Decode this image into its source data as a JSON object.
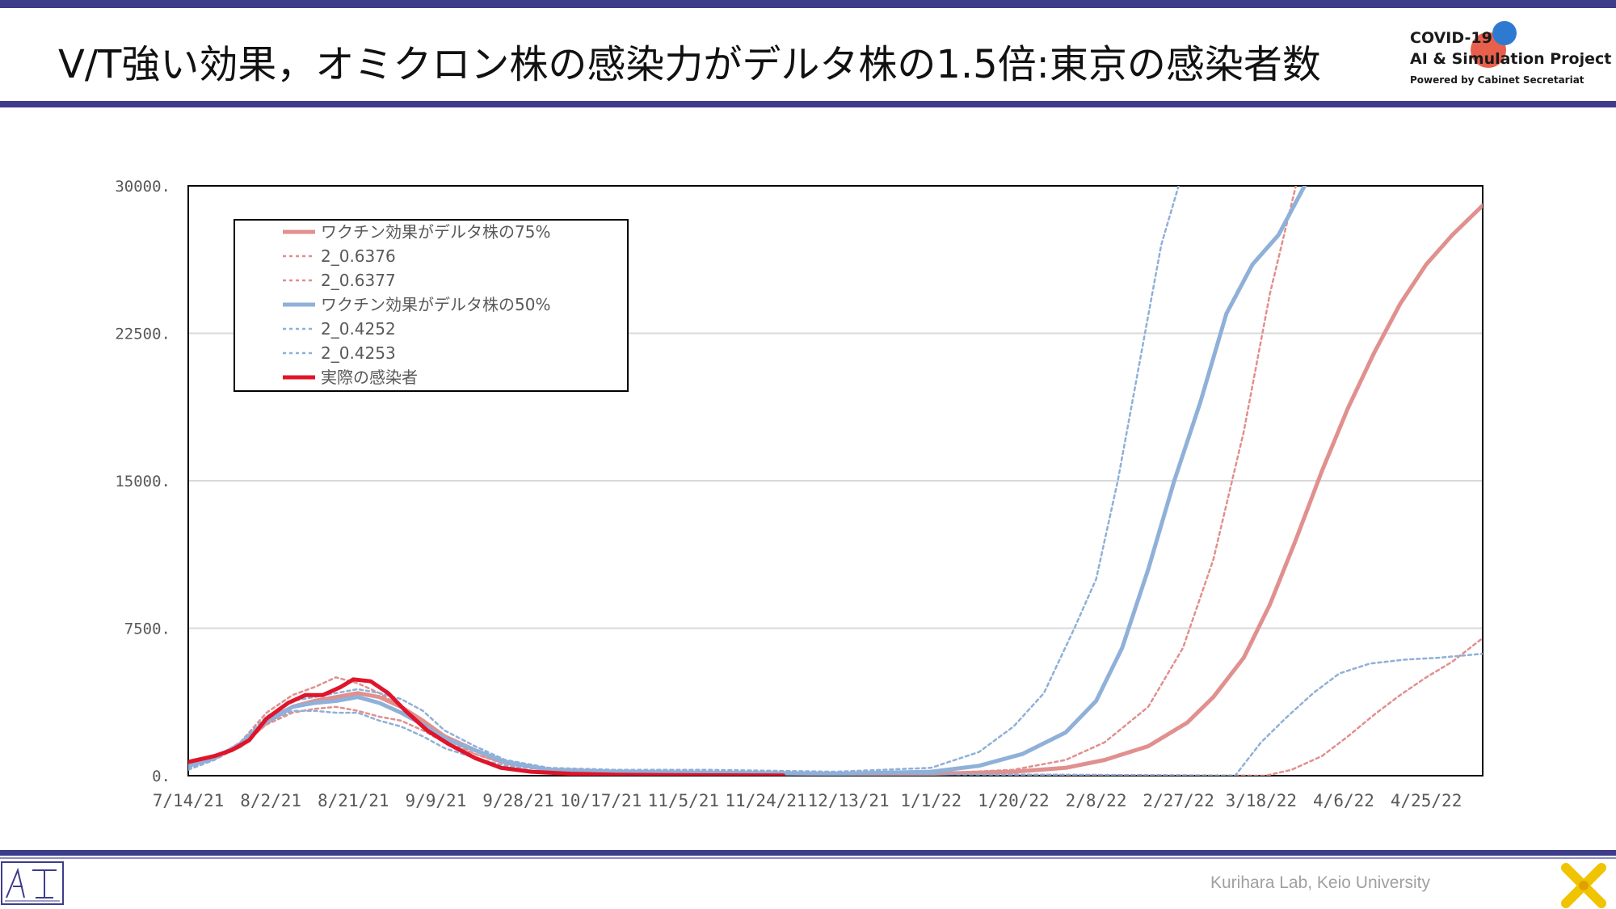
{
  "header": {
    "title": "V/T強い効果，オミクロン株の感染力がデルタ株の1.5倍:東京の感染者数"
  },
  "logo": {
    "line1": "COVID-19",
    "line2": "AI & Simulation Project",
    "line3": "Powered by Cabinet Secretariat"
  },
  "footer": {
    "credit": "Kurihara Lab, Keio University"
  },
  "colors": {
    "accent": "#3d3d8a",
    "pink": "#e0908e",
    "blue": "#8fb0d8",
    "red": "#e0142a"
  },
  "chart_data": {
    "type": "line",
    "x_axis_type": "date",
    "x_start": "2021-07-14",
    "x_end": "2022-05-08",
    "x_tick_labels": [
      "7/14/21",
      "8/2/21",
      "8/21/21",
      "9/9/21",
      "9/28/21",
      "10/17/21",
      "11/5/21",
      "11/24/21",
      "12/13/21",
      "1/1/22",
      "1/20/22",
      "2/8/22",
      "2/27/22",
      "3/18/22",
      "4/6/22",
      "4/25/22"
    ],
    "y_tick_labels": [
      "0.",
      "7500.",
      "15000.",
      "22500.",
      "30000."
    ],
    "ylim": [
      0,
      30000
    ],
    "grid": true,
    "legend_position": "top-left",
    "series": [
      {
        "name": "ワクチン効果がデルタ株の75%",
        "style": "solid",
        "color": "#e0908e",
        "points": [
          [
            "2021-07-14",
            600
          ],
          [
            "2021-07-20",
            950
          ],
          [
            "2021-07-26",
            1500
          ],
          [
            "2021-08-01",
            2700
          ],
          [
            "2021-08-07",
            3500
          ],
          [
            "2021-08-12",
            3800
          ],
          [
            "2021-08-17",
            4000
          ],
          [
            "2021-08-22",
            4200
          ],
          [
            "2021-08-27",
            4000
          ],
          [
            "2021-09-01",
            3500
          ],
          [
            "2021-09-06",
            2800
          ],
          [
            "2021-09-11",
            2000
          ],
          [
            "2021-09-18",
            1300
          ],
          [
            "2021-09-25",
            700
          ],
          [
            "2021-10-05",
            300
          ],
          [
            "2021-10-20",
            200
          ],
          [
            "2021-11-10",
            150
          ],
          [
            "2021-12-10",
            100
          ],
          [
            "2022-01-01",
            100
          ],
          [
            "2022-01-20",
            200
          ],
          [
            "2022-02-01",
            400
          ],
          [
            "2022-02-10",
            800
          ],
          [
            "2022-02-20",
            1500
          ],
          [
            "2022-03-01",
            2700
          ],
          [
            "2022-03-07",
            4000
          ],
          [
            "2022-03-14",
            6000
          ],
          [
            "2022-03-20",
            8700
          ],
          [
            "2022-03-26",
            12000
          ],
          [
            "2022-04-01",
            15500
          ],
          [
            "2022-04-07",
            18700
          ],
          [
            "2022-04-13",
            21500
          ],
          [
            "2022-04-19",
            24000
          ],
          [
            "2022-04-25",
            26000
          ],
          [
            "2022-05-01",
            27500
          ],
          [
            "2022-05-08",
            29000
          ]
        ]
      },
      {
        "name": "2_0.6376",
        "style": "dotted",
        "color": "#e0908e",
        "points": [
          [
            "2021-07-14",
            500
          ],
          [
            "2021-07-20",
            900
          ],
          [
            "2021-07-26",
            1700
          ],
          [
            "2021-08-01",
            3200
          ],
          [
            "2021-08-07",
            4100
          ],
          [
            "2021-08-12",
            4500
          ],
          [
            "2021-08-17",
            5000
          ],
          [
            "2021-08-22",
            4700
          ],
          [
            "2021-08-27",
            4200
          ],
          [
            "2021-09-01",
            3500
          ],
          [
            "2021-09-06",
            2700
          ],
          [
            "2021-09-11",
            1900
          ],
          [
            "2021-09-18",
            1100
          ],
          [
            "2021-09-25",
            600
          ],
          [
            "2021-10-05",
            300
          ],
          [
            "2021-10-20",
            200
          ],
          [
            "2021-11-10",
            150
          ],
          [
            "2021-12-10",
            100
          ],
          [
            "2022-01-01",
            100
          ],
          [
            "2022-01-20",
            300
          ],
          [
            "2022-02-01",
            800
          ],
          [
            "2022-02-10",
            1700
          ],
          [
            "2022-02-20",
            3500
          ],
          [
            "2022-02-28",
            6500
          ],
          [
            "2022-03-07",
            11000
          ],
          [
            "2022-03-14",
            17500
          ],
          [
            "2022-03-20",
            24500
          ],
          [
            "2022-03-26",
            30000
          ]
        ]
      },
      {
        "name": "2_0.6377",
        "style": "dotted",
        "color": "#e0908e",
        "points": [
          [
            "2021-07-14",
            400
          ],
          [
            "2021-07-20",
            800
          ],
          [
            "2021-07-26",
            1500
          ],
          [
            "2021-08-01",
            2600
          ],
          [
            "2021-08-07",
            3200
          ],
          [
            "2021-08-12",
            3400
          ],
          [
            "2021-08-17",
            3500
          ],
          [
            "2021-08-22",
            3300
          ],
          [
            "2021-08-27",
            3000
          ],
          [
            "2021-09-01",
            2800
          ],
          [
            "2021-09-06",
            2300
          ],
          [
            "2021-09-11",
            1700
          ],
          [
            "2021-09-18",
            1100
          ],
          [
            "2021-09-25",
            600
          ],
          [
            "2021-10-05",
            300
          ],
          [
            "2021-10-20",
            200
          ],
          [
            "2021-11-10",
            150
          ],
          [
            "2021-12-10",
            100
          ],
          [
            "2022-03-19",
            0
          ],
          [
            "2022-03-25",
            300
          ],
          [
            "2022-04-01",
            1000
          ],
          [
            "2022-04-07",
            2000
          ],
          [
            "2022-04-13",
            3100
          ],
          [
            "2022-04-19",
            4100
          ],
          [
            "2022-04-25",
            5000
          ],
          [
            "2022-05-01",
            5800
          ],
          [
            "2022-05-08",
            7000
          ]
        ]
      },
      {
        "name": "ワクチン効果がデルタ株の50%",
        "style": "solid",
        "color": "#8fb0d8",
        "points": [
          [
            "2021-07-14",
            500
          ],
          [
            "2021-07-20",
            900
          ],
          [
            "2021-07-26",
            1600
          ],
          [
            "2021-08-01",
            2800
          ],
          [
            "2021-08-07",
            3500
          ],
          [
            "2021-08-12",
            3700
          ],
          [
            "2021-08-17",
            3800
          ],
          [
            "2021-08-22",
            4000
          ],
          [
            "2021-08-27",
            3700
          ],
          [
            "2021-09-01",
            3200
          ],
          [
            "2021-09-06",
            2600
          ],
          [
            "2021-09-11",
            1900
          ],
          [
            "2021-09-18",
            1300
          ],
          [
            "2021-09-25",
            700
          ],
          [
            "2021-10-05",
            300
          ],
          [
            "2021-10-20",
            200
          ],
          [
            "2021-11-10",
            150
          ],
          [
            "2021-12-10",
            100
          ],
          [
            "2022-01-01",
            200
          ],
          [
            "2022-01-12",
            500
          ],
          [
            "2022-01-22",
            1100
          ],
          [
            "2022-02-01",
            2200
          ],
          [
            "2022-02-08",
            3800
          ],
          [
            "2022-02-14",
            6500
          ],
          [
            "2022-02-20",
            10500
          ],
          [
            "2022-02-26",
            15000
          ],
          [
            "2022-03-04",
            19000
          ],
          [
            "2022-03-10",
            23500
          ],
          [
            "2022-03-16",
            26000
          ],
          [
            "2022-03-22",
            27500
          ],
          [
            "2022-03-28",
            30000
          ]
        ]
      },
      {
        "name": "2_0.4252",
        "style": "dotted",
        "color": "#8fb0d8",
        "points": [
          [
            "2021-07-14",
            400
          ],
          [
            "2021-07-20",
            800
          ],
          [
            "2021-07-26",
            1700
          ],
          [
            "2021-08-01",
            3000
          ],
          [
            "2021-08-07",
            3800
          ],
          [
            "2021-08-12",
            4000
          ],
          [
            "2021-08-17",
            4200
          ],
          [
            "2021-08-22",
            4400
          ],
          [
            "2021-08-27",
            4200
          ],
          [
            "2021-09-01",
            3900
          ],
          [
            "2021-09-06",
            3300
          ],
          [
            "2021-09-11",
            2300
          ],
          [
            "2021-09-18",
            1500
          ],
          [
            "2021-09-25",
            800
          ],
          [
            "2021-10-05",
            400
          ],
          [
            "2021-10-20",
            300
          ],
          [
            "2021-11-10",
            300
          ],
          [
            "2021-12-10",
            200
          ],
          [
            "2022-01-01",
            400
          ],
          [
            "2022-01-12",
            1200
          ],
          [
            "2022-01-20",
            2500
          ],
          [
            "2022-01-27",
            4200
          ],
          [
            "2022-02-03",
            7500
          ],
          [
            "2022-02-08",
            10000
          ],
          [
            "2022-02-13",
            15000
          ],
          [
            "2022-02-18",
            21000
          ],
          [
            "2022-02-23",
            27000
          ],
          [
            "2022-02-27",
            30000
          ]
        ]
      },
      {
        "name": "2_0.4253",
        "style": "dotted",
        "color": "#8fb0d8",
        "points": [
          [
            "2021-07-14",
            300
          ],
          [
            "2021-07-20",
            800
          ],
          [
            "2021-07-26",
            1600
          ],
          [
            "2021-08-01",
            2700
          ],
          [
            "2021-08-07",
            3300
          ],
          [
            "2021-08-12",
            3300
          ],
          [
            "2021-08-17",
            3200
          ],
          [
            "2021-08-22",
            3200
          ],
          [
            "2021-08-27",
            2800
          ],
          [
            "2021-09-01",
            2500
          ],
          [
            "2021-09-06",
            2000
          ],
          [
            "2021-09-11",
            1400
          ],
          [
            "2021-09-18",
            900
          ],
          [
            "2021-09-25",
            500
          ],
          [
            "2021-10-05",
            300
          ],
          [
            "2021-10-20",
            200
          ],
          [
            "2021-11-10",
            150
          ],
          [
            "2021-12-10",
            100
          ],
          [
            "2022-03-12",
            0
          ],
          [
            "2022-03-18",
            1700
          ],
          [
            "2022-03-24",
            3000
          ],
          [
            "2022-03-30",
            4200
          ],
          [
            "2022-04-05",
            5200
          ],
          [
            "2022-04-12",
            5700
          ],
          [
            "2022-04-20",
            5900
          ],
          [
            "2022-04-28",
            6000
          ],
          [
            "2022-05-08",
            6200
          ]
        ]
      },
      {
        "name": "実際の感染者",
        "style": "solid",
        "color": "#e0142a",
        "points": [
          [
            "2021-07-14",
            700
          ],
          [
            "2021-07-20",
            1000
          ],
          [
            "2021-07-24",
            1300
          ],
          [
            "2021-07-28",
            1800
          ],
          [
            "2021-08-01",
            2900
          ],
          [
            "2021-08-06",
            3700
          ],
          [
            "2021-08-10",
            4100
          ],
          [
            "2021-08-14",
            4100
          ],
          [
            "2021-08-18",
            4500
          ],
          [
            "2021-08-21",
            4900
          ],
          [
            "2021-08-25",
            4800
          ],
          [
            "2021-08-29",
            4200
          ],
          [
            "2021-09-02",
            3300
          ],
          [
            "2021-09-07",
            2300
          ],
          [
            "2021-09-12",
            1600
          ],
          [
            "2021-09-18",
            900
          ],
          [
            "2021-09-24",
            400
          ],
          [
            "2021-10-01",
            200
          ],
          [
            "2021-10-10",
            100
          ],
          [
            "2021-10-20",
            50
          ],
          [
            "2021-11-10",
            20
          ],
          [
            "2021-11-28",
            10
          ]
        ]
      }
    ]
  }
}
